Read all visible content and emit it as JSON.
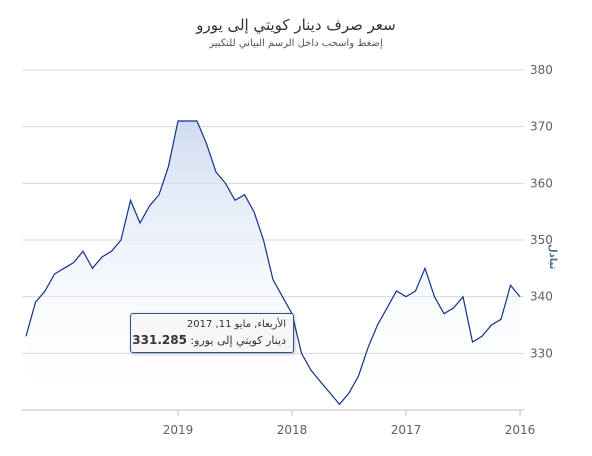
{
  "chart_data": {
    "type": "area",
    "title": "سعر صرف دينار كويتي إلى يورو",
    "subtitle": "إضغط واسحب داخل الرسم البياني للتكبير",
    "ylabel": "تبادل",
    "ylim": [
      320,
      380
    ],
    "x_reversed": true,
    "y_axis_position": "right",
    "grid": true,
    "yticks": [
      330,
      340,
      350,
      360,
      370,
      380
    ],
    "xticks": [
      "2019",
      "2018",
      "2017",
      "2016"
    ],
    "series_color": "#13318a",
    "fill_color": "#cfdcf1",
    "x": [
      "2016-01",
      "2016-02",
      "2016-03",
      "2016-04",
      "2016-05",
      "2016-06",
      "2016-07",
      "2016-08",
      "2016-09",
      "2016-10",
      "2016-11",
      "2016-12",
      "2017-01",
      "2017-02",
      "2017-03",
      "2017-04",
      "2017-05",
      "2017-06",
      "2017-07",
      "2017-08",
      "2017-09",
      "2017-10",
      "2017-11",
      "2017-12",
      "2018-01",
      "2018-02",
      "2018-03",
      "2018-04",
      "2018-05",
      "2018-06",
      "2018-07",
      "2018-08",
      "2018-09",
      "2018-10",
      "2018-11",
      "2018-12",
      "2019-01",
      "2019-02",
      "2019-03",
      "2019-04",
      "2019-05",
      "2019-06",
      "2019-07",
      "2019-08",
      "2019-09",
      "2019-10",
      "2019-11",
      "2019-12",
      "2020-01",
      "2020-02",
      "2020-03",
      "2020-04",
      "2020-05"
    ],
    "values": [
      340,
      342,
      336,
      335,
      333,
      332,
      340,
      338,
      337,
      340,
      345,
      341,
      340,
      341,
      338,
      335,
      331,
      326,
      323,
      321,
      323,
      325,
      327,
      330,
      337,
      340,
      343,
      350,
      355,
      358,
      357,
      360,
      362,
      367,
      371,
      371,
      371,
      363,
      358,
      356,
      353,
      357,
      350,
      348,
      347,
      345,
      348,
      346,
      345,
      344,
      341,
      339,
      333
    ],
    "tooltip": {
      "date": "الأربعاء, مايو 11, 2017",
      "series": "دينار كويتي إلى يورو",
      "value": "331.285"
    }
  }
}
